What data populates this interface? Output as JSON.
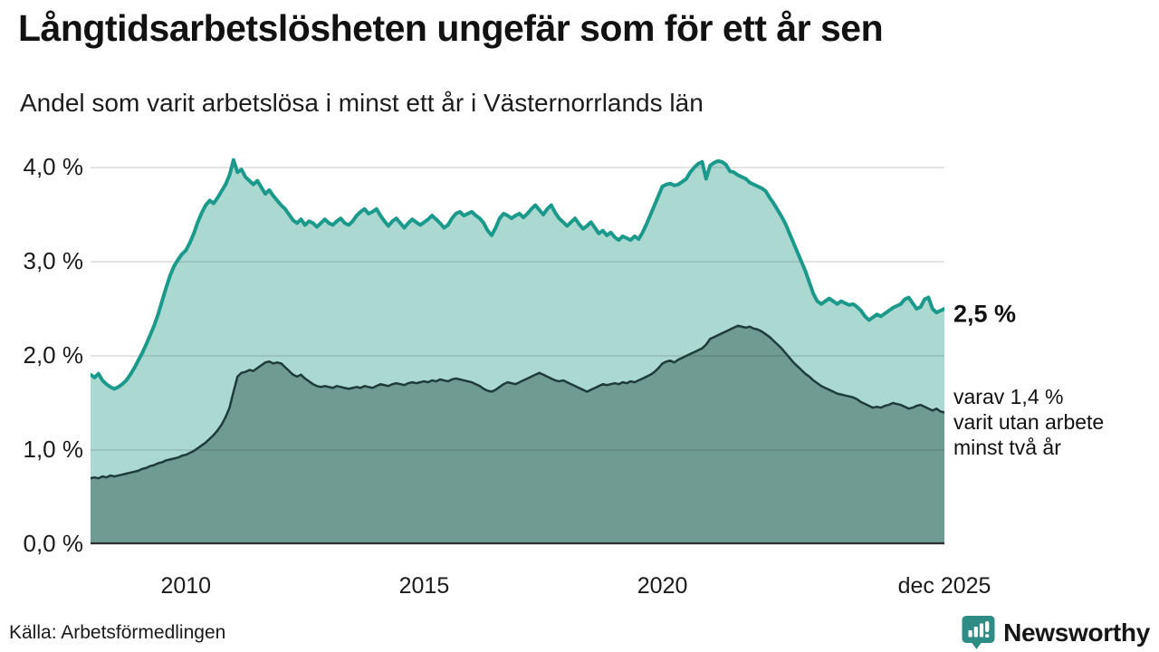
{
  "header": {
    "title": "Långtidsarbetslösheten ungefär som för ett år sen",
    "subtitle": "Andel som varit arbetslösa i minst ett år i Västernorrlands län"
  },
  "annotations": {
    "primary_end_label": "2,5 %",
    "secondary_end_label_line1": "varav 1,4 %",
    "secondary_end_label_line2": "varit utan arbete",
    "secondary_end_label_line3": "minst två år"
  },
  "footer": {
    "source": "Källa: Arbetsförmedlingen",
    "brand": "Newsworthy"
  },
  "colors": {
    "primary_line": "#1b9a8b",
    "primary_fill": "#abd8d1",
    "secondary_line": "#1e3d3a",
    "secondary_fill": "#6f9b93",
    "gridline": "#d9d9d9",
    "baseline": "#2f2f2f",
    "brand_teal": "#2e8c84"
  },
  "chart_data": {
    "type": "area",
    "title": "Långtidsarbetslösheten ungefär som för ett år sen",
    "subtitle": "Andel som varit arbetslösa i minst ett år i Västernorrlands län",
    "unit": "percent",
    "frequency": "monthly",
    "x_start": "2008-01",
    "x_end": "2025-12",
    "ylim": [
      0,
      4.35
    ],
    "grid": true,
    "y_ticks": [
      {
        "label": "4,0 %",
        "value": 4.0
      },
      {
        "label": "3,0 %",
        "value": 3.0
      },
      {
        "label": "2,0 %",
        "value": 2.0
      },
      {
        "label": "1,0 %",
        "value": 1.0
      },
      {
        "label": "0,0 %",
        "value": 0.0
      }
    ],
    "x_ticks": [
      {
        "label": "2010",
        "month_index": 24
      },
      {
        "label": "2015",
        "month_index": 84
      },
      {
        "label": "2020",
        "month_index": 144
      },
      {
        "label": "dec 2025",
        "month_index": 215
      }
    ],
    "series": [
      {
        "name": "Arbetslösa minst ett år",
        "end_value_label": "2,5 %",
        "line_color": "#1b9a8b",
        "fill_color": "#abd8d1",
        "line_width": 4,
        "values": [
          1.8,
          1.77,
          1.81,
          1.74,
          1.7,
          1.67,
          1.65,
          1.67,
          1.7,
          1.74,
          1.8,
          1.87,
          1.95,
          2.03,
          2.12,
          2.22,
          2.32,
          2.44,
          2.58,
          2.72,
          2.85,
          2.95,
          3.02,
          3.08,
          3.12,
          3.2,
          3.3,
          3.42,
          3.52,
          3.6,
          3.65,
          3.62,
          3.68,
          3.75,
          3.82,
          3.92,
          4.08,
          3.95,
          3.98,
          3.9,
          3.86,
          3.82,
          3.86,
          3.79,
          3.72,
          3.76,
          3.7,
          3.65,
          3.6,
          3.56,
          3.5,
          3.44,
          3.41,
          3.45,
          3.39,
          3.43,
          3.41,
          3.37,
          3.41,
          3.45,
          3.41,
          3.39,
          3.43,
          3.46,
          3.41,
          3.39,
          3.43,
          3.49,
          3.53,
          3.56,
          3.51,
          3.53,
          3.56,
          3.49,
          3.43,
          3.38,
          3.43,
          3.46,
          3.41,
          3.36,
          3.41,
          3.45,
          3.42,
          3.39,
          3.42,
          3.45,
          3.49,
          3.45,
          3.41,
          3.36,
          3.39,
          3.46,
          3.51,
          3.53,
          3.49,
          3.51,
          3.53,
          3.49,
          3.46,
          3.41,
          3.33,
          3.28,
          3.36,
          3.46,
          3.51,
          3.49,
          3.46,
          3.49,
          3.51,
          3.47,
          3.51,
          3.56,
          3.6,
          3.55,
          3.5,
          3.56,
          3.6,
          3.52,
          3.46,
          3.42,
          3.38,
          3.42,
          3.46,
          3.4,
          3.35,
          3.38,
          3.42,
          3.36,
          3.3,
          3.33,
          3.28,
          3.31,
          3.26,
          3.23,
          3.27,
          3.25,
          3.23,
          3.27,
          3.24,
          3.31,
          3.4,
          3.5,
          3.6,
          3.7,
          3.8,
          3.82,
          3.83,
          3.81,
          3.82,
          3.85,
          3.88,
          3.95,
          4.0,
          4.04,
          4.06,
          3.88,
          4.02,
          4.05,
          4.07,
          4.06,
          4.03,
          3.96,
          3.95,
          3.92,
          3.9,
          3.88,
          3.84,
          3.82,
          3.8,
          3.78,
          3.75,
          3.68,
          3.62,
          3.55,
          3.48,
          3.4,
          3.3,
          3.2,
          3.1,
          3.0,
          2.9,
          2.78,
          2.66,
          2.58,
          2.55,
          2.58,
          2.61,
          2.58,
          2.55,
          2.58,
          2.56,
          2.54,
          2.55,
          2.52,
          2.48,
          2.42,
          2.38,
          2.41,
          2.44,
          2.42,
          2.45,
          2.48,
          2.51,
          2.53,
          2.55,
          2.6,
          2.62,
          2.56,
          2.5,
          2.52,
          2.6,
          2.62,
          2.5,
          2.46,
          2.48,
          2.5
        ]
      },
      {
        "name": "varav utan arbete minst två år",
        "end_value_label": "1,4 %",
        "line_color": "#1e3d3a",
        "fill_color": "#6f9b93",
        "line_width": 2.5,
        "values": [
          0.7,
          0.71,
          0.7,
          0.72,
          0.71,
          0.73,
          0.72,
          0.73,
          0.74,
          0.75,
          0.76,
          0.77,
          0.78,
          0.8,
          0.81,
          0.83,
          0.84,
          0.86,
          0.87,
          0.89,
          0.9,
          0.91,
          0.92,
          0.94,
          0.95,
          0.97,
          0.99,
          1.02,
          1.05,
          1.08,
          1.12,
          1.16,
          1.21,
          1.27,
          1.35,
          1.45,
          1.62,
          1.78,
          1.82,
          1.83,
          1.85,
          1.84,
          1.87,
          1.9,
          1.93,
          1.94,
          1.92,
          1.93,
          1.92,
          1.88,
          1.84,
          1.8,
          1.78,
          1.8,
          1.76,
          1.73,
          1.7,
          1.68,
          1.67,
          1.68,
          1.67,
          1.66,
          1.68,
          1.67,
          1.66,
          1.65,
          1.66,
          1.67,
          1.66,
          1.68,
          1.67,
          1.66,
          1.68,
          1.7,
          1.69,
          1.68,
          1.7,
          1.71,
          1.7,
          1.69,
          1.71,
          1.72,
          1.71,
          1.72,
          1.73,
          1.72,
          1.74,
          1.73,
          1.75,
          1.74,
          1.73,
          1.75,
          1.76,
          1.75,
          1.74,
          1.73,
          1.72,
          1.7,
          1.68,
          1.65,
          1.63,
          1.62,
          1.64,
          1.67,
          1.7,
          1.72,
          1.71,
          1.7,
          1.72,
          1.74,
          1.76,
          1.78,
          1.8,
          1.82,
          1.8,
          1.78,
          1.76,
          1.74,
          1.73,
          1.74,
          1.72,
          1.7,
          1.68,
          1.66,
          1.64,
          1.62,
          1.64,
          1.66,
          1.68,
          1.7,
          1.69,
          1.7,
          1.71,
          1.7,
          1.72,
          1.71,
          1.73,
          1.72,
          1.74,
          1.76,
          1.78,
          1.8,
          1.83,
          1.87,
          1.92,
          1.94,
          1.95,
          1.93,
          1.96,
          1.98,
          2.0,
          2.02,
          2.04,
          2.06,
          2.08,
          2.12,
          2.18,
          2.2,
          2.22,
          2.24,
          2.26,
          2.28,
          2.3,
          2.32,
          2.31,
          2.3,
          2.31,
          2.29,
          2.28,
          2.26,
          2.23,
          2.2,
          2.16,
          2.12,
          2.08,
          2.03,
          1.98,
          1.93,
          1.89,
          1.85,
          1.81,
          1.78,
          1.74,
          1.71,
          1.68,
          1.66,
          1.64,
          1.62,
          1.6,
          1.59,
          1.58,
          1.57,
          1.56,
          1.54,
          1.51,
          1.49,
          1.47,
          1.45,
          1.46,
          1.45,
          1.47,
          1.48,
          1.5,
          1.49,
          1.48,
          1.46,
          1.44,
          1.45,
          1.47,
          1.48,
          1.46,
          1.44,
          1.42,
          1.44,
          1.41,
          1.4
        ]
      }
    ]
  }
}
